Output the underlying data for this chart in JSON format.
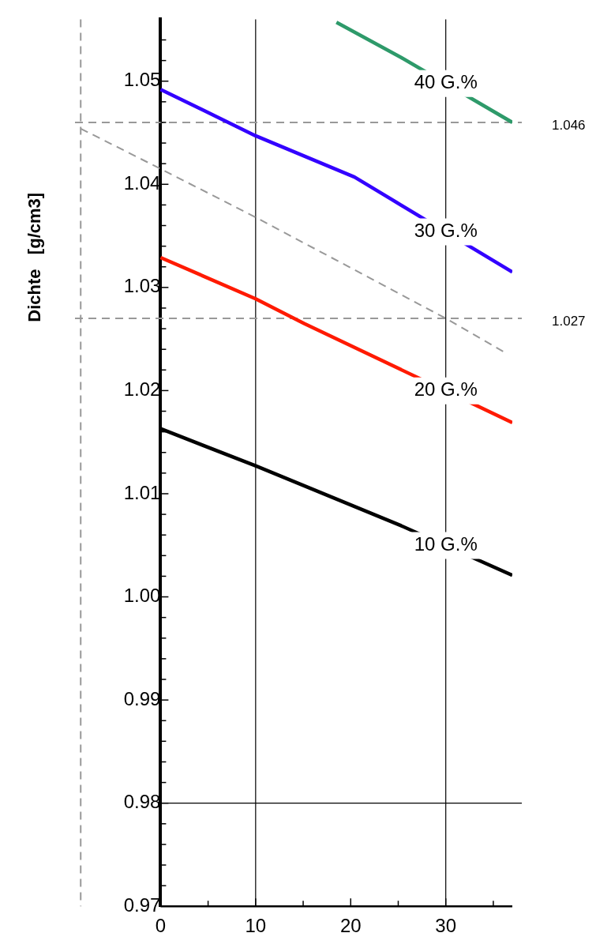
{
  "chart_data": {
    "type": "line",
    "ylabel": "Dichte   [g/cm3]",
    "xlim": [
      -9,
      37
    ],
    "ylim": [
      0.97,
      1.056
    ],
    "xticks": [
      0,
      {
        "value": 5,
        "label": null
      },
      10,
      {
        "value": 15,
        "label": null
      },
      20,
      {
        "value": 25,
        "label": null
      },
      30,
      {
        "value": 35,
        "label": null
      }
    ],
    "yticks": [
      {
        "value": 0.97,
        "label": "0.97"
      },
      {
        "value": 0.972,
        "label": null
      },
      {
        "value": 0.974,
        "label": null
      },
      {
        "value": 0.976,
        "label": null
      },
      {
        "value": 0.978,
        "label": null
      },
      {
        "value": 0.98,
        "label": "0.98"
      },
      {
        "value": 0.982,
        "label": null
      },
      {
        "value": 0.984,
        "label": null
      },
      {
        "value": 0.986,
        "label": null
      },
      {
        "value": 0.988,
        "label": null
      },
      {
        "value": 0.99,
        "label": "0.99"
      },
      {
        "value": 0.992,
        "label": null
      },
      {
        "value": 0.994,
        "label": null
      },
      {
        "value": 0.996,
        "label": null
      },
      {
        "value": 0.998,
        "label": null
      },
      {
        "value": 1.0,
        "label": "1.00"
      },
      {
        "value": 1.002,
        "label": null
      },
      {
        "value": 1.004,
        "label": null
      },
      {
        "value": 1.006,
        "label": null
      },
      {
        "value": 1.008,
        "label": null
      },
      {
        "value": 1.01,
        "label": "1.01"
      },
      {
        "value": 1.012,
        "label": null
      },
      {
        "value": 1.014,
        "label": null
      },
      {
        "value": 1.016,
        "label": null
      },
      {
        "value": 1.018,
        "label": null
      },
      {
        "value": 1.02,
        "label": "1.02"
      },
      {
        "value": 1.022,
        "label": null
      },
      {
        "value": 1.024,
        "label": null
      },
      {
        "value": 1.026,
        "label": null
      },
      {
        "value": 1.028,
        "label": null
      },
      {
        "value": 1.03,
        "label": "1.03"
      },
      {
        "value": 1.032,
        "label": null
      },
      {
        "value": 1.034,
        "label": null
      },
      {
        "value": 1.036,
        "label": null
      },
      {
        "value": 1.038,
        "label": null
      },
      {
        "value": 1.04,
        "label": "1.04"
      },
      {
        "value": 1.042,
        "label": null
      },
      {
        "value": 1.044,
        "label": null
      },
      {
        "value": 1.046,
        "label": null
      },
      {
        "value": 1.048,
        "label": null
      },
      {
        "value": 1.05,
        "label": "1.05"
      },
      {
        "value": 1.052,
        "label": null
      },
      {
        "value": 1.054,
        "label": null
      }
    ],
    "grid": false,
    "legend": false,
    "marker": "none",
    "line_style": "solid",
    "series": [
      {
        "name": "40 G.%",
        "color": "#2e9a6a",
        "x": [
          18.5,
          25.3,
          37
        ],
        "values": [
          1.0557,
          1.0523,
          1.046
        ]
      },
      {
        "name": "30 G.%",
        "color": "#3300ff",
        "x": [
          0,
          10,
          20.4,
          37
        ],
        "values": [
          1.0492,
          1.0447,
          1.0407,
          1.0315
        ]
      },
      {
        "name": "20 G.%",
        "color": "#ff1a00",
        "x": [
          0,
          10,
          15.1,
          37
        ],
        "values": [
          1.0329,
          1.0289,
          1.0265,
          1.0169
        ]
      },
      {
        "name": "10 G.%",
        "color": "#000000",
        "x": [
          0,
          10,
          25.3,
          37
        ],
        "values": [
          1.0163,
          1.0127,
          1.0069,
          1.0021
        ]
      },
      {
        "color": "#999999",
        "line_style": "dashed",
        "x": [
          -8.4,
          0,
          10,
          30,
          36.2
        ],
        "values": [
          1.0454,
          1.0415,
          1.0368,
          1.027,
          1.0237
        ]
      }
    ],
    "ref_lines": [
      {
        "axis": "x",
        "value": 10,
        "color": "#000000"
      },
      {
        "axis": "x",
        "value": 30,
        "color": "#000000"
      },
      {
        "axis": "y",
        "value": 0.98,
        "color": "#000000"
      },
      {
        "axis": "y",
        "value": 1.046,
        "label": "1.046",
        "color": "#999999",
        "line_style": "dashed"
      },
      {
        "axis": "y",
        "value": 1.027,
        "label": "1.027",
        "color": "#999999",
        "line_style": "dashed"
      },
      {
        "axis": "x",
        "value": -8.4,
        "color": "#999999",
        "line_style": "dashed"
      }
    ]
  }
}
